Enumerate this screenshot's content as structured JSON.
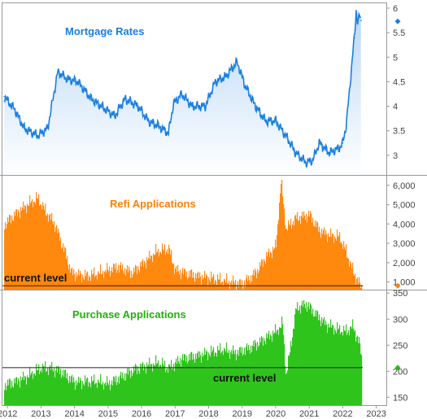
{
  "chart_data": [
    {
      "type": "area",
      "title": "Mortgage Rates",
      "color": "#1a7fe0",
      "ylim": [
        2.6,
        6.1
      ],
      "yticks": [
        "3",
        "3.5",
        "4",
        "4.5",
        "5",
        "5.5",
        "6"
      ],
      "x": [
        "2011.9",
        "2012.2",
        "2012.5",
        "2012.9",
        "2013.2",
        "2013.5",
        "2013.8",
        "2014.1",
        "2014.5",
        "2014.9",
        "2015.2",
        "2015.5",
        "2015.9",
        "2016.2",
        "2016.5",
        "2016.8",
        "2016.95",
        "2017.2",
        "2017.5",
        "2017.9",
        "2018.2",
        "2018.5",
        "2018.85",
        "2019.1",
        "2019.4",
        "2019.7",
        "2020.0",
        "2020.3",
        "2020.6",
        "2020.9",
        "2021.1",
        "2021.3",
        "2021.6",
        "2021.9",
        "2022.0",
        "2022.1",
        "2022.2",
        "2022.3",
        "2022.35",
        "2022.4",
        "2022.45",
        "2022.5",
        "2022.55"
      ],
      "values": [
        4.2,
        3.95,
        3.55,
        3.4,
        3.55,
        4.7,
        4.55,
        4.5,
        4.15,
        3.95,
        3.8,
        4.15,
        4.0,
        3.7,
        3.6,
        3.45,
        4.05,
        4.25,
        4.0,
        4.0,
        4.5,
        4.6,
        4.9,
        4.4,
        4.0,
        3.7,
        3.7,
        3.4,
        3.05,
        2.85,
        2.9,
        3.25,
        3.05,
        3.15,
        3.25,
        3.6,
        4.3,
        5.1,
        5.4,
        5.95,
        5.7,
        5.85,
        5.75
      ],
      "current_value": 5.73
    },
    {
      "type": "bar",
      "title": "Refi Applications",
      "color": "#ff8000",
      "ylim": [
        600,
        6500
      ],
      "yticks": [
        "1,000",
        "2,000",
        "3,000",
        "4,000",
        "5,000",
        "6,000"
      ],
      "x": [
        "2011.9",
        "2012.2",
        "2012.6",
        "2012.9",
        "2013.1",
        "2013.4",
        "2013.7",
        "2013.9",
        "2014.3",
        "2014.7",
        "2015.0",
        "2015.3",
        "2015.7",
        "2016.0",
        "2016.4",
        "2016.8",
        "2017.0",
        "2017.5",
        "2018.0",
        "2018.5",
        "2019.0",
        "2019.4",
        "2019.7",
        "2020.0",
        "2020.15",
        "2020.3",
        "2020.6",
        "2021.0",
        "2021.3",
        "2021.6",
        "2021.9",
        "2022.1",
        "2022.3",
        "2022.55"
      ],
      "values": [
        4000,
        4500,
        5000,
        5300,
        4700,
        4000,
        2600,
        1500,
        1300,
        1400,
        1600,
        1800,
        1500,
        1900,
        2500,
        2700,
        1600,
        1400,
        1200,
        1000,
        900,
        1500,
        2300,
        2800,
        6200,
        3700,
        4300,
        4500,
        3700,
        3400,
        3300,
        2500,
        1500,
        700
      ],
      "current_value": 800,
      "annotation": "current level"
    },
    {
      "type": "bar",
      "title": "Purchase Applications",
      "color": "#22c00e",
      "ylim": [
        135,
        355
      ],
      "yticks": [
        "150",
        "200",
        "250",
        "300",
        "350"
      ],
      "xticks": [
        "2012",
        "2013",
        "2014",
        "2015",
        "2016",
        "2017",
        "2018",
        "2019",
        "2020",
        "2021",
        "2022",
        "2023"
      ],
      "x": [
        "2011.9",
        "2012.2",
        "2012.6",
        "2013.0",
        "2013.3",
        "2013.6",
        "2014.0",
        "2014.5",
        "2015.0",
        "2015.4",
        "2015.8",
        "2016.1",
        "2016.5",
        "2016.8",
        "2017.2",
        "2017.6",
        "2018.0",
        "2018.4",
        "2018.8",
        "2019.2",
        "2019.6",
        "2020.0",
        "2020.2",
        "2020.3",
        "2020.4",
        "2020.6",
        "2020.9",
        "2021.2",
        "2021.5",
        "2021.8",
        "2022.1",
        "2022.3",
        "2022.5",
        "2022.55"
      ],
      "values": [
        175,
        180,
        190,
        205,
        205,
        200,
        180,
        180,
        175,
        190,
        205,
        210,
        215,
        205,
        225,
        230,
        235,
        240,
        235,
        245,
        260,
        275,
        290,
        190,
        230,
        320,
        330,
        310,
        290,
        280,
        275,
        285,
        250,
        225
      ],
      "current_value": 207,
      "annotation": "current level"
    }
  ]
}
